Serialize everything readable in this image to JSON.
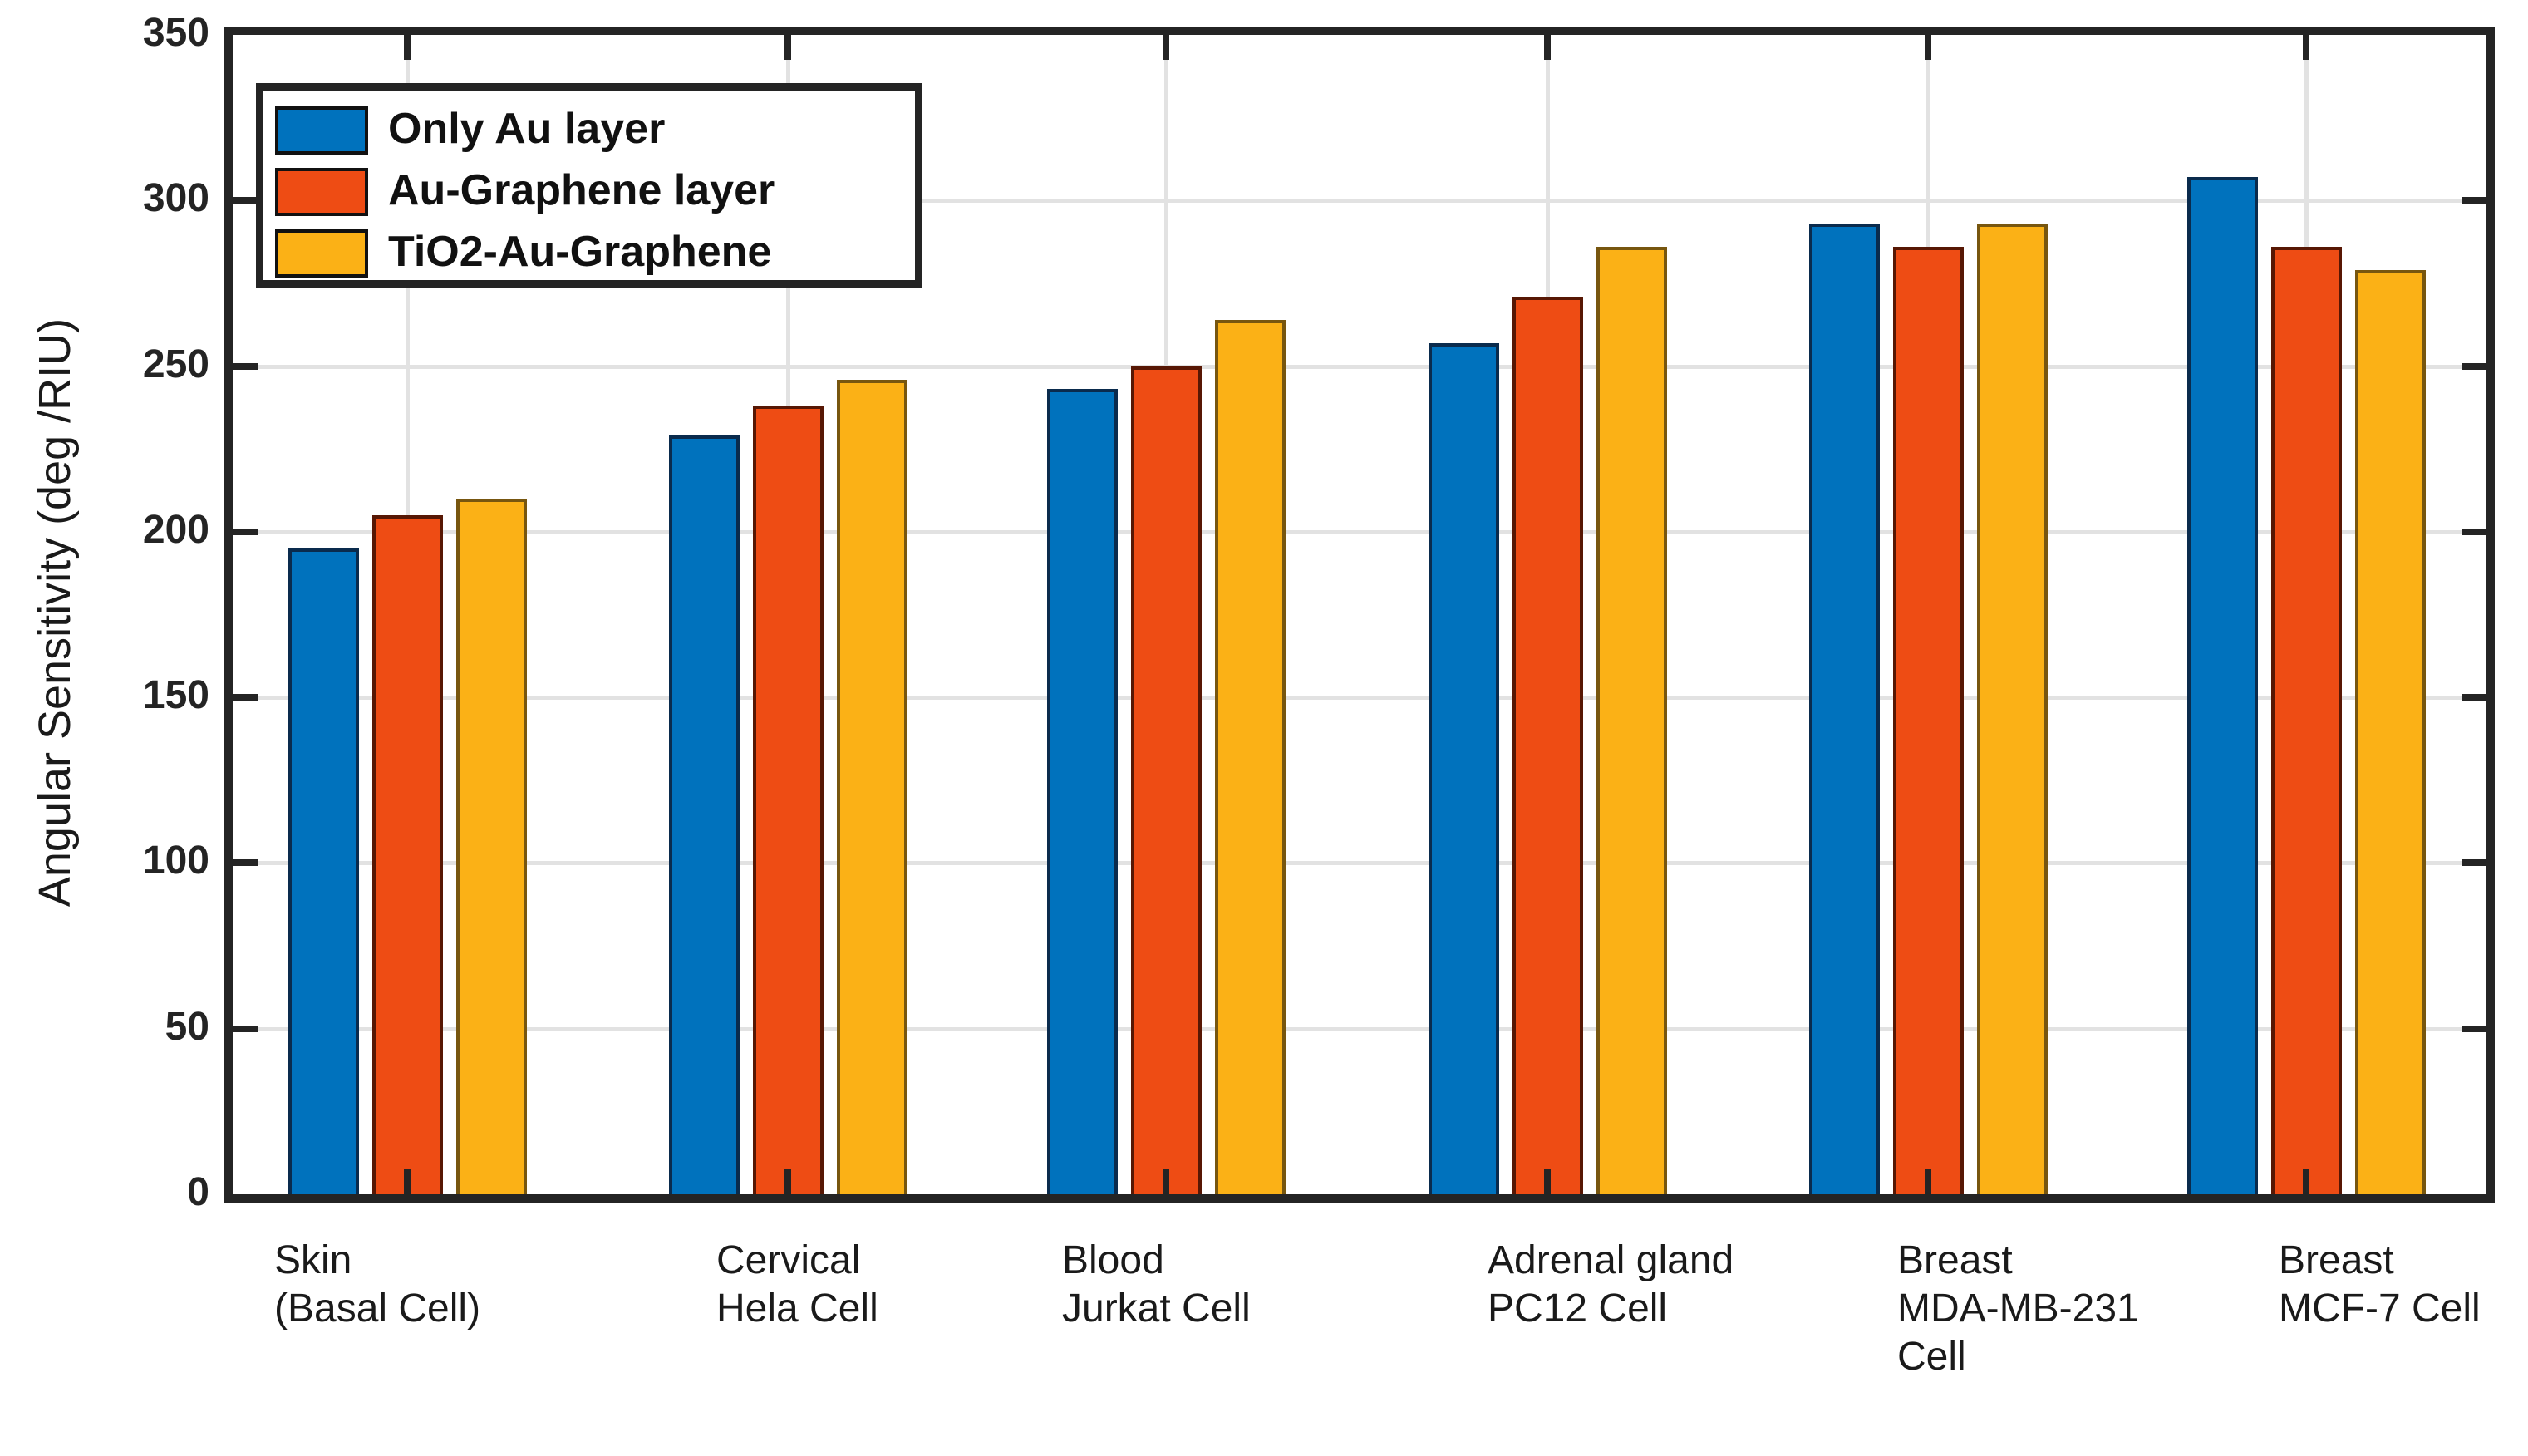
{
  "chart_data": {
    "type": "bar",
    "title": "",
    "xlabel": "",
    "ylabel": "Angular Sensitivity (deg /RIU)",
    "ylim": [
      0,
      350
    ],
    "yticks": [
      0,
      50,
      100,
      150,
      200,
      250,
      300,
      350
    ],
    "grid": true,
    "legend_position": "top-left",
    "categories": [
      "Skin (Basal Cell)",
      "Cervical Hela Cell",
      "Blood Jurkat Cell",
      "Adrenal gland PC12 Cell",
      "Breast MDA-MB-231 Cell",
      "Breast MCF-7 Cell"
    ],
    "category_lines": [
      [
        "Skin",
        "(Basal Cell)"
      ],
      [
        "Cervical",
        "Hela Cell"
      ],
      [
        "Blood",
        "Jurkat Cell"
      ],
      [
        "Adrenal gland",
        "PC12 Cell"
      ],
      [
        "Breast",
        "MDA-MB-231",
        "Cell"
      ],
      [
        "Breast",
        "MCF-7 Cell"
      ]
    ],
    "series": [
      {
        "name": "Only Au layer",
        "values": [
          195,
          229,
          243,
          257,
          293,
          307
        ],
        "color": "#0072BD",
        "edge_color": "#0a2b4d"
      },
      {
        "name": "Au-Graphene layer",
        "values": [
          205,
          238,
          250,
          271,
          286,
          286
        ],
        "color": "#ee4c14",
        "edge_color": "#571704"
      },
      {
        "name": "TiO2-Au-Graphene",
        "values": [
          210,
          246,
          264,
          286,
          293,
          279
        ],
        "color": "#fbb116",
        "edge_color": "#77560f"
      }
    ],
    "colors": {
      "grid": "#e2e2e2",
      "frame": "#242424",
      "tick": "#242424",
      "text": "#1a1a1a",
      "background": "#ffffff"
    }
  }
}
